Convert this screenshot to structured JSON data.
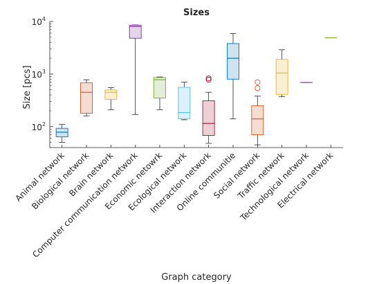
{
  "chart_data": {
    "type": "box",
    "title": "Sizes",
    "xlabel": "Graph category",
    "ylabel": "Size [pcs]",
    "yscale": "log",
    "ylim": [
      40,
      10000
    ],
    "yticks": [
      {
        "value": 100,
        "base": "10",
        "exp": "2"
      },
      {
        "value": 1000,
        "base": "10",
        "exp": "3"
      },
      {
        "value": 10000,
        "base": "10",
        "exp": "4"
      }
    ],
    "grid": false,
    "categories": [
      "Animal network",
      "Biological network",
      "Brain network",
      "Computer communication network",
      "Economic netowrk",
      "Ecological network",
      "Interaction network",
      "Online communitie",
      "Social network",
      "Traffic network",
      "Technological network",
      "Electrical network"
    ],
    "boxes": [
      {
        "whisker_low": 50,
        "q1": 64,
        "median": 78,
        "q3": 93,
        "whisker_high": 110,
        "outliers": [],
        "color": "#0072BD",
        "fill": "#cce3f2"
      },
      {
        "whisker_low": 160,
        "q1": 180,
        "median": 450,
        "q3": 680,
        "whisker_high": 780,
        "outliers": [],
        "color": "#D95319",
        "fill": "#f7ddd1"
      },
      {
        "whisker_low": 210,
        "q1": 330,
        "median": 450,
        "q3": 500,
        "whisker_high": 550,
        "outliers": [],
        "color": "#EDB120",
        "fill": "#fbefd2"
      },
      {
        "whisker_low": 170,
        "q1": 4800,
        "median": 8000,
        "q3": 8500,
        "whisker_high": 8600,
        "outliers": [],
        "color": "#7E2F8E",
        "fill": "#e5d5e8"
      },
      {
        "whisker_low": 210,
        "q1": 350,
        "median": 780,
        "q3": 860,
        "whisker_high": 880,
        "outliers": [],
        "color": "#77AC30",
        "fill": "#e4eed6"
      },
      {
        "whisker_low": 135,
        "q1": 140,
        "median": 185,
        "q3": 560,
        "whisker_high": 700,
        "outliers": [],
        "color": "#4DBEEE",
        "fill": "#dbf2fc"
      },
      {
        "whisker_low": 48,
        "q1": 68,
        "median": 115,
        "q3": 310,
        "whisker_high": 450,
        "outliers": [
          780,
          830
        ],
        "color": "#A2142F",
        "fill": "#ecd0d5"
      },
      {
        "whisker_low": 140,
        "q1": 800,
        "median": 2000,
        "q3": 3800,
        "whisker_high": 5900,
        "outliers": [],
        "color": "#0072BD",
        "fill": "#cce3f2"
      },
      {
        "whisker_low": 45,
        "q1": 70,
        "median": 140,
        "q3": 250,
        "whisker_high": 380,
        "outliers": [
          540,
          700
        ],
        "color": "#D95319",
        "fill": "#f7ddd1"
      },
      {
        "whisker_low": 370,
        "q1": 410,
        "median": 1050,
        "q3": 1900,
        "whisker_high": 2900,
        "outliers": [],
        "color": "#EDB120",
        "fill": "#fbefd2"
      },
      {
        "whisker_low": 690,
        "q1": 690,
        "median": 690,
        "q3": 690,
        "whisker_high": 690,
        "outliers": [],
        "color": "#7E2F8E",
        "fill": "#e5d5e8"
      },
      {
        "whisker_low": 4900,
        "q1": 4900,
        "median": 4900,
        "q3": 4900,
        "whisker_high": 4900,
        "outliers": [],
        "color": "#77AC30",
        "fill": "#e4eed6"
      }
    ]
  }
}
